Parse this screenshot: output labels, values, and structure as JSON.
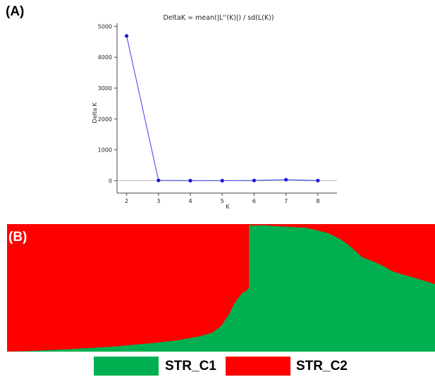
{
  "panels": {
    "a_label": "(A)",
    "b_label": "(B)"
  },
  "colors": {
    "line": "#3a3aee",
    "point": "#1a1acc",
    "axis": "#444444",
    "zero_line": "#bbbbbb",
    "cluster1": "#00b050",
    "cluster2": "#ff0000"
  },
  "chart_data": [
    {
      "type": "line",
      "title": "DeltaK = mean(|L''(K)|) / sd(L(K))",
      "xlabel": "K",
      "ylabel": "Delta K",
      "x": [
        2,
        3,
        4,
        5,
        6,
        7,
        8
      ],
      "series": [
        {
          "values": [
            4690,
            10,
            3,
            2,
            8,
            35,
            5
          ]
        }
      ],
      "xlim": [
        1.7,
        8.6
      ],
      "ylim": [
        -400,
        5100
      ],
      "xticks": [
        2,
        3,
        4,
        5,
        6,
        7,
        8
      ],
      "yticks": [
        0,
        1000,
        2000,
        3000,
        4000,
        5000
      ],
      "grid": false
    },
    {
      "type": "area",
      "description_of_axes": "",
      "xlim": [
        0,
        1
      ],
      "ylim": [
        0,
        1
      ],
      "series": [
        {
          "name": "STR_C1",
          "x": [
            0,
            0.05,
            0.1,
            0.15,
            0.2,
            0.25,
            0.3,
            0.35,
            0.4,
            0.45,
            0.48,
            0.5,
            0.51,
            0.52,
            0.53,
            0.54,
            0.55,
            0.56,
            0.565,
            0.5651,
            0.6,
            0.65,
            0.7,
            0.75,
            0.78,
            0.8,
            0.83,
            0.86,
            0.88,
            0.9,
            0.93,
            0.96,
            1.0
          ],
          "values": [
            0.0,
            0.005,
            0.012,
            0.02,
            0.03,
            0.04,
            0.055,
            0.07,
            0.09,
            0.12,
            0.15,
            0.2,
            0.25,
            0.3,
            0.37,
            0.42,
            0.46,
            0.48,
            0.5,
            0.99,
            0.99,
            0.98,
            0.97,
            0.93,
            0.88,
            0.83,
            0.74,
            0.7,
            0.67,
            0.63,
            0.6,
            0.57,
            0.53
          ]
        },
        {
          "name": "STR_C2",
          "values_note": ""
        }
      ]
    }
  ],
  "legend": [
    {
      "label": "STR_C1"
    },
    {
      "label": "STR_C2"
    }
  ]
}
